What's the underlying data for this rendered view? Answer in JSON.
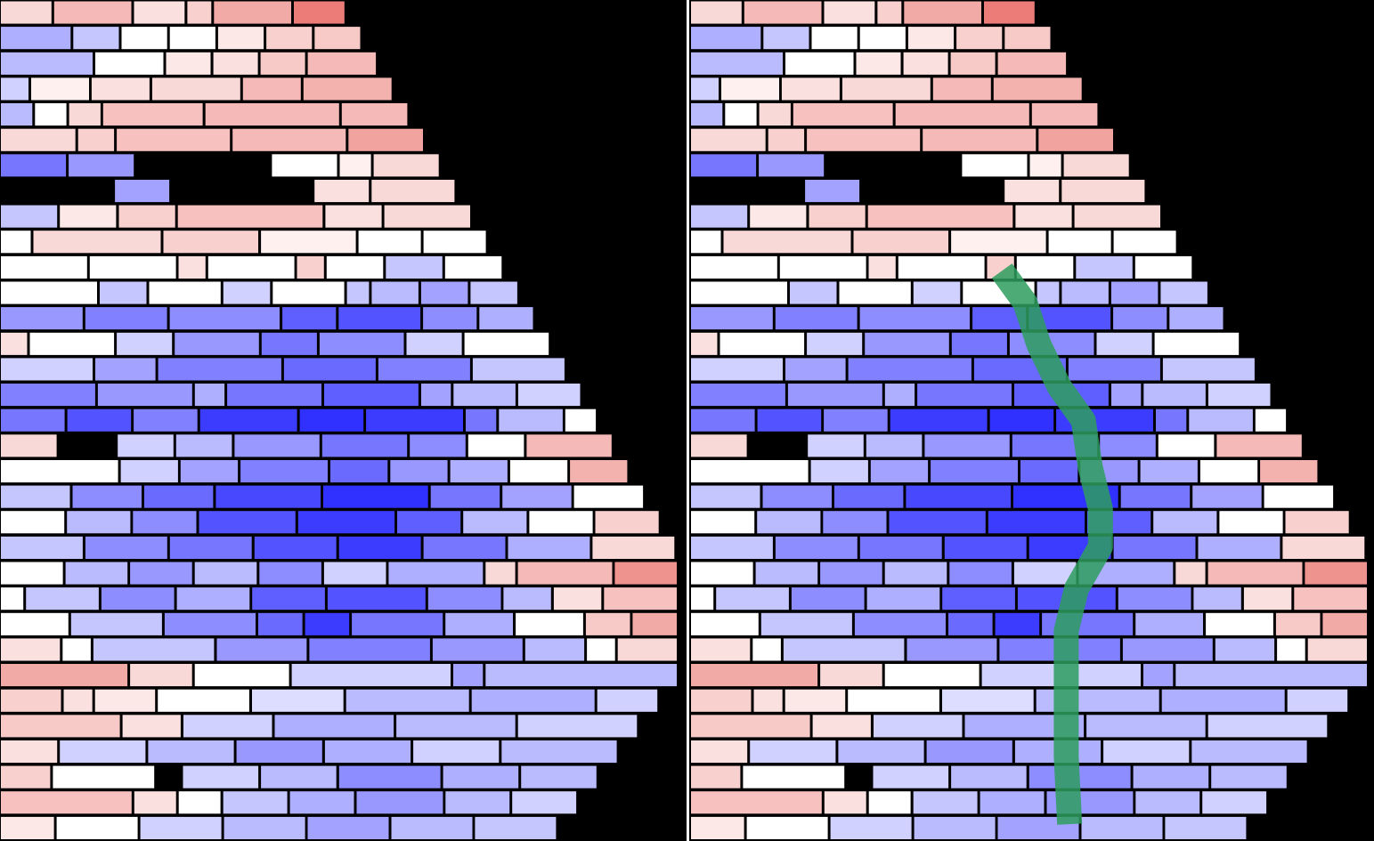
{
  "palette": {
    "background": "#000000",
    "divider": "#ffffff",
    "trace": "#2e9e5e",
    "cold": "#1a1aff",
    "neutral": "#ffffff",
    "hot": "#e8655f"
  },
  "rows": [
    [
      [
        0.25,
        2
      ],
      [
        0.45,
        3
      ],
      [
        0.2,
        2
      ],
      [
        0.3,
        1
      ],
      [
        0.55,
        3
      ],
      [
        0.85,
        2
      ]
    ],
    [
      [
        -0.35,
        3
      ],
      [
        -0.25,
        2
      ],
      [
        0.0,
        2
      ],
      [
        0.0,
        2
      ],
      [
        0.15,
        2
      ],
      [
        0.3,
        2
      ],
      [
        0.35,
        2
      ]
    ],
    [
      [
        -0.3,
        4
      ],
      [
        0.0,
        3
      ],
      [
        0.15,
        2
      ],
      [
        0.2,
        2
      ],
      [
        0.35,
        2
      ],
      [
        0.45,
        3
      ]
    ],
    [
      [
        -0.2,
        1
      ],
      [
        0.1,
        2
      ],
      [
        0.2,
        2
      ],
      [
        0.25,
        3
      ],
      [
        0.45,
        2
      ],
      [
        0.5,
        3
      ]
    ],
    [
      [
        -0.3,
        1
      ],
      [
        0.0,
        1
      ],
      [
        0.25,
        1
      ],
      [
        0.4,
        3
      ],
      [
        0.45,
        4
      ],
      [
        0.45,
        2
      ]
    ],
    [
      [
        0.25,
        2
      ],
      [
        0.3,
        1
      ],
      [
        0.4,
        3
      ],
      [
        0.45,
        3
      ],
      [
        0.6,
        2
      ]
    ],
    [
      [
        -0.6,
        2
      ],
      [
        -0.45,
        2
      ],
      [
        "gap",
        4
      ],
      [
        0.0,
        2
      ],
      [
        0.1,
        1
      ],
      [
        0.25,
        2
      ]
    ],
    [
      [
        "gap",
        4
      ],
      [
        -0.4,
        2
      ],
      [
        "gap",
        5
      ],
      [
        0.2,
        2
      ],
      [
        0.25,
        3
      ]
    ],
    [
      [
        -0.25,
        2
      ],
      [
        0.15,
        2
      ],
      [
        0.3,
        2
      ],
      [
        0.4,
        5
      ],
      [
        0.2,
        2
      ],
      [
        0.25,
        3
      ]
    ],
    [
      [
        0.0,
        1
      ],
      [
        0.25,
        4
      ],
      [
        0.3,
        3
      ],
      [
        0.1,
        3
      ],
      [
        0.0,
        2
      ],
      [
        0.0,
        2
      ]
    ],
    [
      [
        0.0,
        3
      ],
      [
        0.0,
        3
      ],
      [
        0.2,
        1
      ],
      [
        0.0,
        3
      ],
      [
        0.3,
        1
      ],
      [
        0.0,
        2
      ],
      [
        -0.25,
        2
      ],
      [
        0.0,
        2
      ]
    ],
    [
      [
        0.0,
        4
      ],
      [
        -0.25,
        2
      ],
      [
        0.0,
        3
      ],
      [
        -0.2,
        2
      ],
      [
        0.0,
        3
      ],
      [
        -0.25,
        1
      ],
      [
        -0.3,
        2
      ],
      [
        -0.4,
        2
      ],
      [
        -0.25,
        2
      ]
    ],
    [
      [
        -0.45,
        3
      ],
      [
        -0.55,
        3
      ],
      [
        -0.5,
        4
      ],
      [
        -0.7,
        2
      ],
      [
        -0.75,
        3
      ],
      [
        -0.5,
        2
      ],
      [
        -0.35,
        2
      ]
    ],
    [
      [
        0.2,
        1
      ],
      [
        0.0,
        3
      ],
      [
        -0.2,
        2
      ],
      [
        -0.45,
        3
      ],
      [
        -0.6,
        2
      ],
      [
        -0.5,
        3
      ],
      [
        -0.2,
        2
      ],
      [
        0.0,
        3
      ]
    ],
    [
      [
        -0.2,
        3
      ],
      [
        -0.4,
        2
      ],
      [
        -0.55,
        4
      ],
      [
        -0.65,
        3
      ],
      [
        -0.55,
        3
      ],
      [
        -0.25,
        3
      ]
    ],
    [
      [
        -0.55,
        3
      ],
      [
        -0.45,
        3
      ],
      [
        -0.35,
        1
      ],
      [
        -0.6,
        3
      ],
      [
        -0.7,
        3
      ],
      [
        -0.4,
        1
      ],
      [
        -0.3,
        2
      ],
      [
        -0.2,
        2
      ]
    ],
    [
      [
        -0.6,
        2
      ],
      [
        -0.75,
        2
      ],
      [
        -0.55,
        2
      ],
      [
        -0.85,
        3
      ],
      [
        -0.9,
        2
      ],
      [
        -0.85,
        3
      ],
      [
        -0.6,
        1
      ],
      [
        -0.3,
        2
      ],
      [
        0.0,
        1
      ]
    ],
    [
      [
        0.25,
        2
      ],
      [
        "gap",
        2
      ],
      [
        -0.2,
        2
      ],
      [
        -0.3,
        2
      ],
      [
        -0.45,
        3
      ],
      [
        -0.6,
        3
      ],
      [
        -0.5,
        2
      ],
      [
        0.0,
        2
      ],
      [
        0.45,
        3
      ]
    ],
    [
      [
        0.0,
        4
      ],
      [
        -0.2,
        2
      ],
      [
        -0.4,
        2
      ],
      [
        -0.55,
        3
      ],
      [
        -0.65,
        2
      ],
      [
        -0.45,
        2
      ],
      [
        -0.35,
        2
      ],
      [
        0.0,
        2
      ],
      [
        0.5,
        2
      ]
    ],
    [
      [
        -0.25,
        2
      ],
      [
        -0.5,
        2
      ],
      [
        -0.65,
        2
      ],
      [
        -0.8,
        3
      ],
      [
        -0.9,
        3
      ],
      [
        -0.6,
        2
      ],
      [
        -0.4,
        2
      ],
      [
        0.0,
        2
      ]
    ],
    [
      [
        0.0,
        2
      ],
      [
        -0.3,
        2
      ],
      [
        -0.5,
        2
      ],
      [
        -0.75,
        3
      ],
      [
        -0.85,
        3
      ],
      [
        -0.7,
        2
      ],
      [
        -0.3,
        2
      ],
      [
        0.0,
        2
      ],
      [
        0.3,
        2
      ]
    ],
    [
      [
        -0.25,
        3
      ],
      [
        -0.5,
        3
      ],
      [
        -0.6,
        3
      ],
      [
        -0.75,
        3
      ],
      [
        -0.85,
        3
      ],
      [
        -0.6,
        3
      ],
      [
        -0.35,
        3
      ],
      [
        0.25,
        3
      ]
    ],
    [
      [
        0.0,
        2
      ],
      [
        -0.3,
        2
      ],
      [
        -0.45,
        2
      ],
      [
        -0.3,
        2
      ],
      [
        -0.5,
        2
      ],
      [
        -0.2,
        2
      ],
      [
        -0.35,
        3
      ],
      [
        0.25,
        1
      ],
      [
        0.45,
        3
      ],
      [
        0.7,
        2
      ]
    ],
    [
      [
        0.0,
        1
      ],
      [
        -0.25,
        3
      ],
      [
        -0.5,
        3
      ],
      [
        -0.35,
        3
      ],
      [
        -0.7,
        3
      ],
      [
        -0.75,
        4
      ],
      [
        -0.5,
        3
      ],
      [
        -0.3,
        2
      ],
      [
        0.2,
        2
      ],
      [
        0.4,
        3
      ]
    ],
    [
      [
        0.0,
        3
      ],
      [
        -0.25,
        4
      ],
      [
        -0.5,
        4
      ],
      [
        -0.65,
        2
      ],
      [
        -0.85,
        2
      ],
      [
        -0.6,
        4
      ],
      [
        -0.35,
        3
      ],
      [
        0.0,
        3
      ],
      [
        0.35,
        2
      ],
      [
        0.55,
        2
      ]
    ],
    [
      [
        0.2,
        2
      ],
      [
        0.0,
        1
      ],
      [
        -0.25,
        4
      ],
      [
        -0.45,
        3
      ],
      [
        -0.55,
        4
      ],
      [
        -0.45,
        3
      ],
      [
        -0.3,
        2
      ],
      [
        0.0,
        1
      ],
      [
        0.25,
        2
      ]
    ],
    [
      [
        0.55,
        4
      ],
      [
        0.25,
        2
      ],
      [
        0.0,
        3
      ],
      [
        -0.2,
        5
      ],
      [
        -0.4,
        1
      ],
      [
        -0.3,
        6
      ]
    ],
    [
      [
        0.3,
        2
      ],
      [
        0.2,
        1
      ],
      [
        0.15,
        2
      ],
      [
        0.0,
        3
      ],
      [
        -0.15,
        3
      ],
      [
        -0.3,
        4
      ],
      [
        -0.35,
        4
      ],
      [
        -0.2,
        2
      ]
    ],
    [
      [
        0.35,
        4
      ],
      [
        0.2,
        2
      ],
      [
        -0.2,
        3
      ],
      [
        -0.35,
        4
      ],
      [
        -0.3,
        4
      ],
      [
        -0.2,
        4
      ]
    ],
    [
      [
        0.2,
        2
      ],
      [
        -0.2,
        3
      ],
      [
        -0.3,
        3
      ],
      [
        -0.45,
        3
      ],
      [
        -0.35,
        3
      ],
      [
        -0.2,
        3
      ],
      [
        -0.3,
        4
      ]
    ],
    [
      [
        0.3,
        2
      ],
      [
        0.0,
        4
      ],
      [
        "gap",
        1
      ],
      [
        -0.2,
        3
      ],
      [
        -0.3,
        3
      ],
      [
        -0.5,
        4
      ],
      [
        -0.35,
        3
      ],
      [
        -0.3,
        3
      ]
    ],
    [
      [
        0.4,
        6
      ],
      [
        0.2,
        2
      ],
      [
        0.0,
        2
      ],
      [
        -0.25,
        3
      ],
      [
        -0.35,
        3
      ],
      [
        -0.45,
        4
      ],
      [
        -0.3,
        3
      ],
      [
        -0.2,
        3
      ]
    ],
    [
      [
        0.15,
        2
      ],
      [
        0.0,
        3
      ],
      [
        -0.2,
        3
      ],
      [
        -0.3,
        3
      ],
      [
        -0.4,
        3
      ],
      [
        -0.3,
        3
      ],
      [
        -0.25,
        3
      ]
    ]
  ],
  "trace": [
    [
      0.456,
      0.322
    ],
    [
      0.49,
      0.36
    ],
    [
      0.51,
      0.41
    ],
    [
      0.54,
      0.46
    ],
    [
      0.575,
      0.5
    ],
    [
      0.585,
      0.555
    ],
    [
      0.6,
      0.605
    ],
    [
      0.6,
      0.65
    ],
    [
      0.565,
      0.7
    ],
    [
      0.55,
      0.75
    ],
    [
      0.55,
      0.8
    ],
    [
      0.55,
      0.85
    ],
    [
      0.55,
      0.9
    ],
    [
      0.555,
      0.98
    ]
  ]
}
